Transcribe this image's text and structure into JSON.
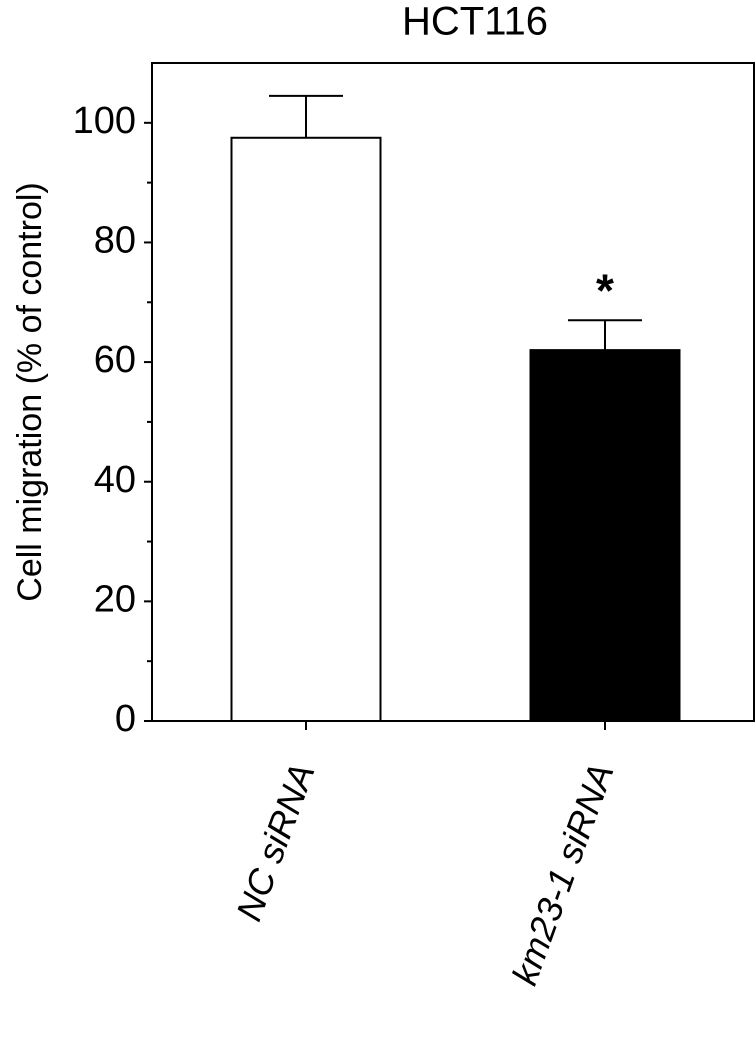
{
  "chart_data": {
    "type": "bar",
    "title": "HCT116",
    "y_label": "Cell migration (% of control)",
    "categories": [
      "NC siRNA",
      "km23-1 siRNA"
    ],
    "values": [
      97.5,
      62
    ],
    "errors": [
      7,
      5
    ],
    "colors": [
      "#ffffff",
      "#000000"
    ],
    "annotations": [
      null,
      "*"
    ],
    "ylim": [
      0,
      110
    ],
    "yticks": [
      0,
      20,
      40,
      60,
      80,
      100
    ],
    "yminorticks": [
      10,
      30,
      50,
      70,
      90
    ]
  }
}
